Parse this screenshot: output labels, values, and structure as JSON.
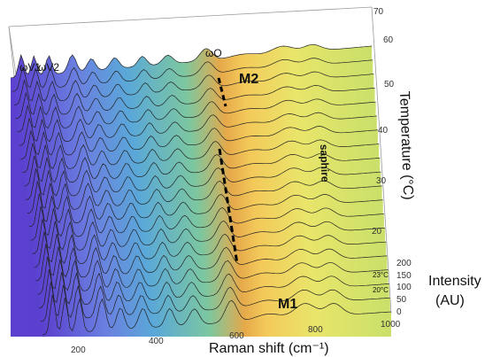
{
  "chart_data": {
    "type": "waterfall-3d",
    "xlabel": "Raman shift (cm⁻¹)",
    "x_ticks": [
      "200",
      "400",
      "600",
      "800",
      "1000"
    ],
    "x_range": [
      150,
      1000
    ],
    "temperature_label": "Temperature (°C)",
    "temperature_ticks": [
      "20",
      "30",
      "40",
      "50",
      "60",
      "70"
    ],
    "temperature_range": [
      20,
      70
    ],
    "intensity_label": [
      "Intensity",
      "(AU)"
    ],
    "intensity_ticks": [
      "0",
      "50",
      "100",
      "150",
      "200"
    ],
    "intensity_range": [
      0,
      200
    ],
    "annotations": {
      "omega_o": "ωO",
      "omega_v1": "ωV1",
      "omega_v2": "ωV2",
      "m1": "M1",
      "m2": "M2",
      "sapphire": "saphire",
      "t23": "23°C",
      "t20": "20°C"
    },
    "peaks_cm1": [
      175,
      205,
      240,
      295,
      340,
      395,
      460,
      520,
      610,
      700,
      790,
      860
    ],
    "curve_count": 20
  }
}
